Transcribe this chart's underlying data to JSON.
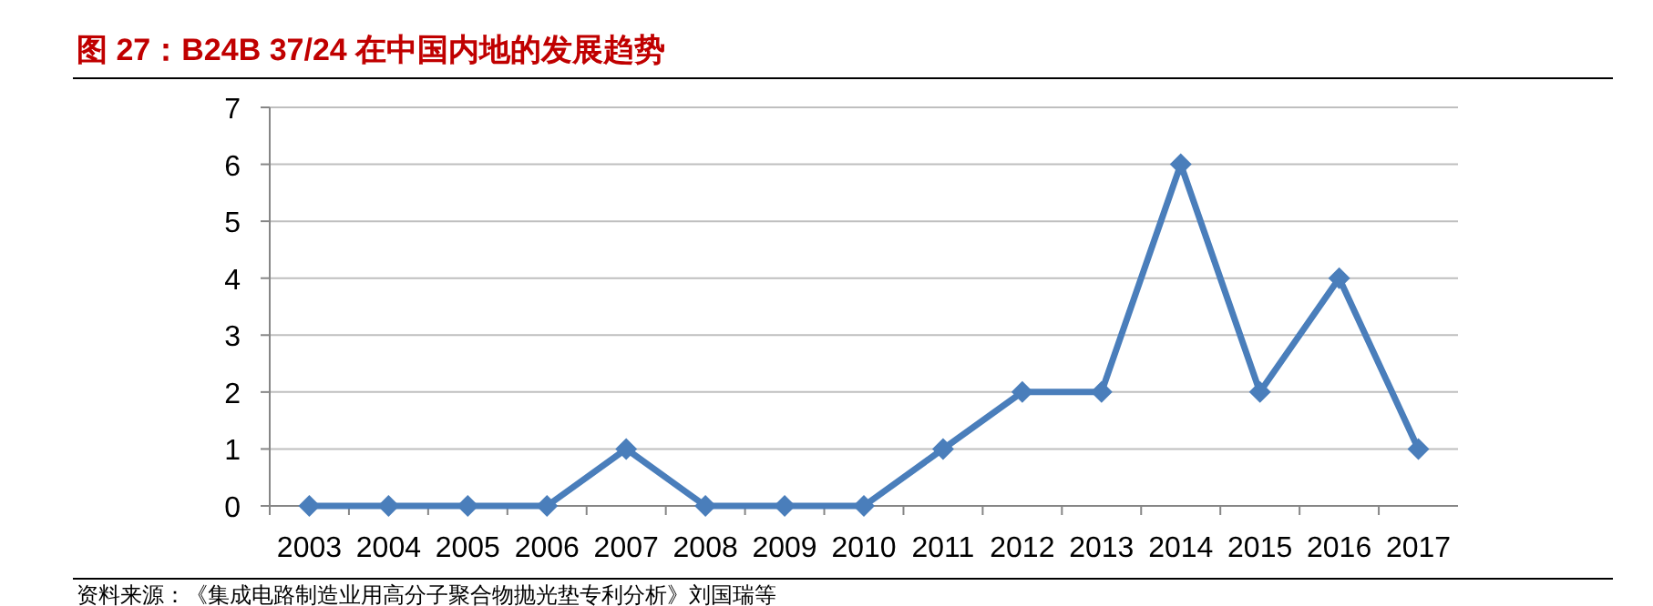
{
  "chart_data": {
    "type": "line",
    "title": "图 27：B24B 37/24 在中国内地的发展趋势",
    "annotations": [
      "资料来源：《集成电路制造业用高分子聚合物抛光垫专利分析》刘国瑞等"
    ],
    "categories": [
      "2003",
      "2004",
      "2005",
      "2006",
      "2007",
      "2008",
      "2009",
      "2010",
      "2011",
      "2012",
      "2013",
      "2014",
      "2015",
      "2016",
      "2017"
    ],
    "values": [
      0,
      0,
      0,
      0,
      1,
      0,
      0,
      0,
      1,
      2,
      2,
      6,
      2,
      4,
      1
    ],
    "color": "#4a7ebb",
    "marker": "diamond",
    "grid": "y",
    "ylim": [
      0,
      7
    ],
    "yticks": [
      0,
      1,
      2,
      3,
      4,
      5,
      6,
      7
    ]
  }
}
